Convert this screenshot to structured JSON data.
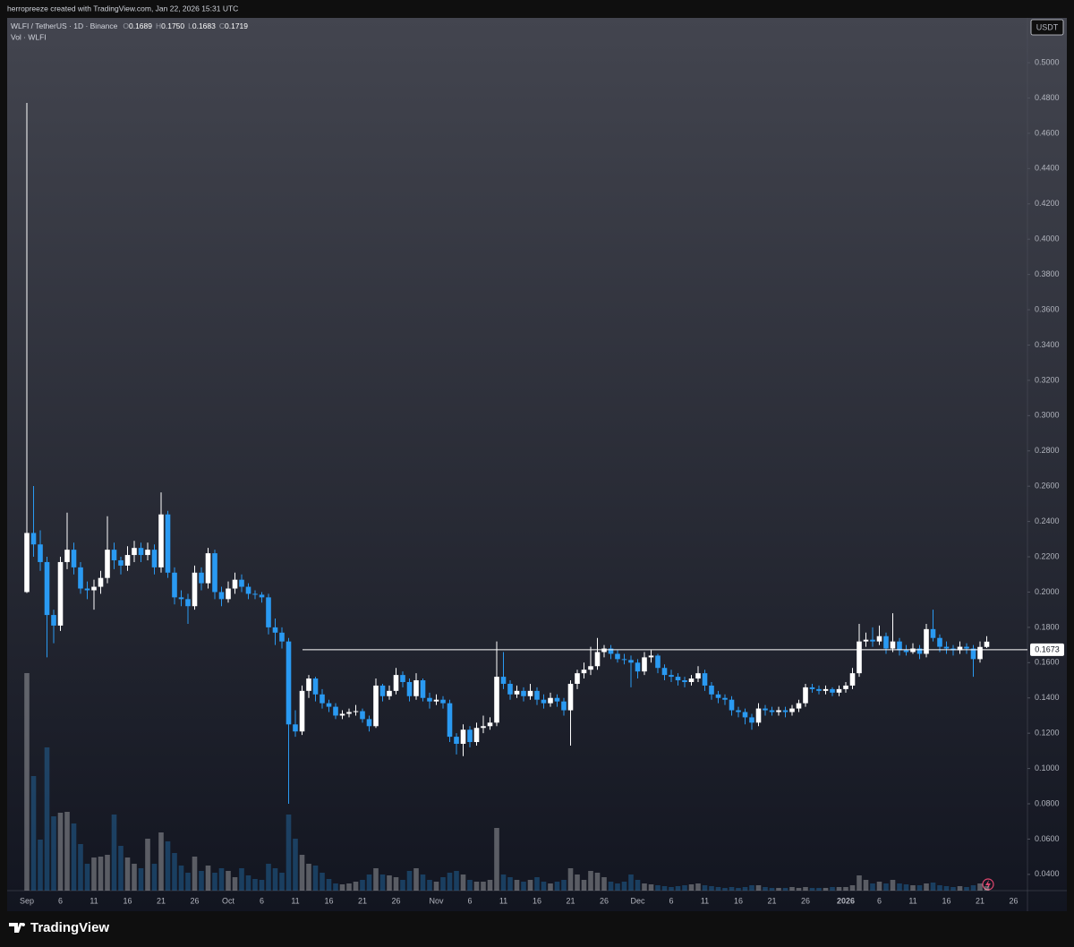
{
  "header": {
    "credit": "herropreeze created with TradingView.com, Jan 22, 2026 15:31 UTC"
  },
  "chart_data": {
    "type": "candlestick",
    "symbol": "WLFI / TetherUS · 1D · Binance",
    "ohlc_legend": [
      {
        "key": "O",
        "value": "0.1689"
      },
      {
        "key": "H",
        "value": "0.1750"
      },
      {
        "key": "L",
        "value": "0.1683"
      },
      {
        "key": "C",
        "value": "0.1719"
      }
    ],
    "volume_label": "Vol · WLFI",
    "currency": "USDT",
    "brand": "TradingView",
    "categories": [
      "Sep",
      null,
      null,
      null,
      null,
      "6",
      null,
      null,
      null,
      null,
      "11",
      null,
      null,
      null,
      null,
      "16",
      null,
      null,
      null,
      null,
      "21",
      null,
      null,
      null,
      null,
      "26",
      null,
      null,
      null,
      null,
      "Oct",
      null,
      null,
      null,
      null,
      "6",
      null,
      null,
      null,
      null,
      "11",
      null,
      null,
      null,
      null,
      "16",
      null,
      null,
      null,
      null,
      "21",
      null,
      null,
      null,
      null,
      "26",
      null,
      null,
      null,
      null,
      null,
      "Nov",
      null,
      null,
      null,
      null,
      "6",
      null,
      null,
      null,
      null,
      "11",
      null,
      null,
      null,
      null,
      "16",
      null,
      null,
      null,
      null,
      "21",
      null,
      null,
      null,
      null,
      "26",
      null,
      null,
      null,
      null,
      "Dec",
      null,
      null,
      null,
      null,
      "6",
      null,
      null,
      null,
      null,
      "11",
      null,
      null,
      null,
      null,
      "16",
      null,
      null,
      null,
      null,
      "21",
      null,
      null,
      null,
      null,
      "26",
      null,
      null,
      null,
      null,
      null,
      "2026",
      null,
      null,
      null,
      null,
      "6",
      null,
      null,
      null,
      null,
      "11",
      null,
      null,
      null,
      null,
      "16",
      null,
      null,
      null,
      null,
      "21",
      null,
      null,
      null,
      null,
      "26"
    ],
    "open": [
      0.2,
      0.2335,
      0.227,
      0.217,
      0.187,
      0.181,
      0.217,
      0.224,
      0.214,
      0.202,
      0.201,
      0.203,
      0.208,
      0.224,
      0.218,
      0.215,
      0.221,
      0.225,
      0.221,
      0.224,
      0.214,
      0.244,
      0.211,
      0.197,
      0.196,
      0.192,
      0.211,
      0.205,
      0.222,
      0.2,
      0.196,
      0.202,
      0.207,
      0.203,
      0.199,
      0.1985,
      0.197,
      0.18,
      0.177,
      0.172,
      0.125,
      0.121,
      0.144,
      0.151,
      0.142,
      0.137,
      0.135,
      0.13,
      0.131,
      0.132,
      0.1325,
      0.128,
      0.124,
      0.147,
      0.141,
      0.144,
      0.153,
      0.149,
      0.141,
      0.15,
      0.14,
      0.138,
      0.139,
      0.137,
      0.118,
      0.114,
      0.122,
      0.115,
      0.123,
      0.124,
      0.126,
      0.152,
      0.148,
      0.142,
      0.144,
      0.141,
      0.144,
      0.139,
      0.137,
      0.14,
      0.138,
      0.133,
      0.148,
      0.154,
      0.156,
      0.158,
      0.166,
      0.168,
      0.165,
      0.162,
      0.1615,
      0.16,
      0.155,
      0.163,
      0.164,
      0.157,
      0.153,
      0.152,
      0.15,
      0.149,
      0.151,
      0.154,
      0.147,
      0.142,
      0.14,
      0.139,
      0.133,
      0.132,
      0.129,
      0.126,
      0.134,
      0.133,
      0.132,
      0.133,
      0.132,
      0.134,
      0.137,
      0.146,
      0.145,
      0.144,
      0.145,
      0.143,
      0.145,
      0.147,
      0.154,
      0.172,
      0.173,
      0.172,
      0.175,
      0.168,
      0.172,
      0.167,
      0.166,
      0.168,
      0.165,
      0.179,
      0.174,
      0.169,
      0.168,
      0.167,
      0.169,
      0.168,
      0.162,
      0.1689,
      null,
      null,
      null,
      null
    ],
    "high": [
      0.4772,
      0.2601,
      0.235,
      0.22,
      0.19,
      0.22,
      0.245,
      0.228,
      0.217,
      0.206,
      0.207,
      0.212,
      0.243,
      0.228,
      0.22,
      0.226,
      0.229,
      0.228,
      0.228,
      0.227,
      0.2565,
      0.246,
      0.214,
      0.201,
      0.199,
      0.215,
      0.214,
      0.225,
      0.224,
      0.203,
      0.206,
      0.211,
      0.21,
      0.205,
      0.201,
      0.2,
      0.199,
      0.185,
      0.18,
      0.174,
      0.133,
      0.147,
      0.153,
      0.152,
      0.145,
      0.139,
      0.137,
      0.133,
      0.134,
      0.136,
      0.134,
      0.13,
      0.151,
      0.148,
      0.147,
      0.157,
      0.155,
      0.151,
      0.154,
      0.151,
      0.143,
      0.142,
      0.141,
      0.139,
      0.12,
      0.125,
      0.124,
      0.126,
      0.13,
      0.129,
      0.172,
      0.166,
      0.15,
      0.147,
      0.146,
      0.148,
      0.146,
      0.142,
      0.143,
      0.142,
      0.14,
      0.15,
      0.156,
      0.16,
      0.169,
      0.174,
      0.17,
      0.17,
      0.167,
      0.165,
      0.164,
      0.162,
      0.166,
      0.167,
      0.165,
      0.159,
      0.156,
      0.154,
      0.152,
      0.153,
      0.158,
      0.156,
      0.149,
      0.144,
      0.142,
      0.141,
      0.135,
      0.134,
      0.131,
      0.137,
      0.136,
      0.135,
      0.135,
      0.135,
      0.136,
      0.139,
      0.148,
      0.148,
      0.147,
      0.147,
      0.146,
      0.147,
      0.149,
      0.157,
      0.182,
      0.177,
      0.18,
      0.181,
      0.177,
      0.188,
      0.174,
      0.17,
      0.171,
      0.17,
      0.182,
      0.19,
      0.176,
      0.172,
      0.17,
      0.172,
      0.171,
      0.17,
      0.172,
      0.175,
      null,
      null,
      null,
      null
    ],
    "low": [
      0.1995,
      0.22,
      0.212,
      0.163,
      0.171,
      0.178,
      0.213,
      0.21,
      0.199,
      0.196,
      0.19,
      0.199,
      0.205,
      0.213,
      0.21,
      0.212,
      0.217,
      0.217,
      0.218,
      0.21,
      0.211,
      0.208,
      0.193,
      0.192,
      0.182,
      0.19,
      0.201,
      0.202,
      0.196,
      0.192,
      0.194,
      0.199,
      0.2,
      0.196,
      0.196,
      0.194,
      0.176,
      0.17,
      0.168,
      0.08,
      0.118,
      0.119,
      0.14,
      0.138,
      0.134,
      0.132,
      0.128,
      0.128,
      0.129,
      0.13,
      0.126,
      0.121,
      0.123,
      0.138,
      0.139,
      0.142,
      0.146,
      0.138,
      0.139,
      0.138,
      0.134,
      0.136,
      0.134,
      0.115,
      0.108,
      0.107,
      0.112,
      0.113,
      0.12,
      0.122,
      0.124,
      0.145,
      0.139,
      0.14,
      0.138,
      0.139,
      0.136,
      0.134,
      0.135,
      0.135,
      0.13,
      0.113,
      0.145,
      0.151,
      0.153,
      0.156,
      0.163,
      0.162,
      0.16,
      0.159,
      0.146,
      0.151,
      0.153,
      0.16,
      0.154,
      0.15,
      0.149,
      0.147,
      0.146,
      0.147,
      0.149,
      0.144,
      0.139,
      0.137,
      0.136,
      0.13,
      0.129,
      0.125,
      0.122,
      0.124,
      0.13,
      0.13,
      0.13,
      0.129,
      0.13,
      0.132,
      0.135,
      0.143,
      0.142,
      0.142,
      0.141,
      0.141,
      0.143,
      0.145,
      0.152,
      0.169,
      0.169,
      0.17,
      0.165,
      0.166,
      0.164,
      0.164,
      0.165,
      0.162,
      0.163,
      0.172,
      0.166,
      0.165,
      0.164,
      0.165,
      0.165,
      0.152,
      0.16,
      0.1683,
      null,
      null,
      null,
      null
    ],
    "close": [
      0.2335,
      0.227,
      0.217,
      0.187,
      0.181,
      0.217,
      0.224,
      0.214,
      0.202,
      0.201,
      0.203,
      0.208,
      0.224,
      0.218,
      0.215,
      0.221,
      0.225,
      0.221,
      0.224,
      0.214,
      0.244,
      0.211,
      0.197,
      0.196,
      0.192,
      0.211,
      0.205,
      0.222,
      0.2,
      0.196,
      0.202,
      0.207,
      0.203,
      0.199,
      0.1985,
      0.197,
      0.18,
      0.177,
      0.172,
      0.125,
      0.121,
      0.144,
      0.151,
      0.142,
      0.137,
      0.135,
      0.13,
      0.131,
      0.132,
      0.1325,
      0.128,
      0.124,
      0.147,
      0.141,
      0.144,
      0.153,
      0.149,
      0.141,
      0.15,
      0.14,
      0.138,
      0.139,
      0.137,
      0.118,
      0.114,
      0.122,
      0.115,
      0.123,
      0.124,
      0.126,
      0.152,
      0.148,
      0.142,
      0.144,
      0.141,
      0.144,
      0.139,
      0.137,
      0.14,
      0.138,
      0.133,
      0.148,
      0.154,
      0.156,
      0.158,
      0.166,
      0.168,
      0.165,
      0.162,
      0.1615,
      0.16,
      0.155,
      0.163,
      0.164,
      0.157,
      0.153,
      0.152,
      0.15,
      0.149,
      0.151,
      0.154,
      0.147,
      0.142,
      0.14,
      0.139,
      0.133,
      0.132,
      0.129,
      0.126,
      0.134,
      0.133,
      0.132,
      0.133,
      0.132,
      0.134,
      0.137,
      0.146,
      0.145,
      0.144,
      0.145,
      0.143,
      0.145,
      0.147,
      0.154,
      0.172,
      0.173,
      0.172,
      0.175,
      0.168,
      0.172,
      0.167,
      0.166,
      0.168,
      0.165,
      0.179,
      0.174,
      0.169,
      0.168,
      0.167,
      0.169,
      0.168,
      0.162,
      0.1689,
      0.1719,
      null,
      null,
      null,
      null
    ],
    "volume": [
      243,
      128,
      57,
      160,
      83,
      87,
      88,
      75,
      52,
      30,
      37,
      38,
      40,
      85,
      50,
      37,
      30,
      25,
      58,
      30,
      65,
      55,
      42,
      28,
      20,
      38,
      22,
      28,
      20,
      25,
      22,
      15,
      25,
      17,
      13,
      12,
      30,
      25,
      20,
      85,
      58,
      40,
      30,
      28,
      20,
      13,
      8,
      7,
      8,
      10,
      12,
      18,
      25,
      18,
      17,
      15,
      12,
      22,
      25,
      18,
      12,
      10,
      15,
      20,
      22,
      18,
      12,
      10,
      10,
      12,
      70,
      18,
      15,
      12,
      10,
      12,
      15,
      10,
      8,
      10,
      12,
      25,
      18,
      12,
      22,
      20,
      15,
      10,
      8,
      10,
      18,
      12,
      8,
      7,
      6,
      5,
      4,
      5,
      6,
      7,
      8,
      6,
      5,
      4,
      3,
      4,
      3,
      4,
      6,
      6,
      4,
      3,
      3,
      3,
      4,
      3,
      4,
      3,
      3,
      3,
      4,
      4,
      4,
      6,
      17,
      12,
      8,
      10,
      8,
      12,
      8,
      7,
      6,
      6,
      8,
      9,
      6,
      5,
      4,
      5,
      4,
      6,
      8,
      5,
      null,
      null,
      null,
      null
    ],
    "volume_ylim": [
      0,
      400
    ],
    "up_color": "#ffffff",
    "down_color": "#2a9af2",
    "ylim": [
      0.0308,
      0.5254
    ],
    "yticks": [
      {
        "value": 0.04,
        "label": "0.0400"
      },
      {
        "value": 0.06,
        "label": "0.0600"
      },
      {
        "value": 0.08,
        "label": "0.0800"
      },
      {
        "value": 0.1,
        "label": "0.1000"
      },
      {
        "value": 0.12,
        "label": "0.1200"
      },
      {
        "value": 0.14,
        "label": "0.1400"
      },
      {
        "value": 0.16,
        "label": "0.1600"
      },
      {
        "value": 0.18,
        "label": "0.1800"
      },
      {
        "value": 0.2,
        "label": "0.2000"
      },
      {
        "value": 0.22,
        "label": "0.2200"
      },
      {
        "value": 0.24,
        "label": "0.2400"
      },
      {
        "value": 0.26,
        "label": "0.2600"
      },
      {
        "value": 0.28,
        "label": "0.2800"
      },
      {
        "value": 0.3,
        "label": "0.3000"
      },
      {
        "value": 0.32,
        "label": "0.3200"
      },
      {
        "value": 0.34,
        "label": "0.3400"
      },
      {
        "value": 0.36,
        "label": "0.3600"
      },
      {
        "value": 0.38,
        "label": "0.3800"
      },
      {
        "value": 0.4,
        "label": "0.4000"
      },
      {
        "value": 0.42,
        "label": "0.4200"
      },
      {
        "value": 0.44,
        "label": "0.4400"
      },
      {
        "value": 0.46,
        "label": "0.4600"
      },
      {
        "value": 0.48,
        "label": "0.4800"
      },
      {
        "value": 0.5,
        "label": "0.5000"
      }
    ],
    "hline": {
      "value": 0.1673,
      "color": "#ffffff"
    }
  }
}
